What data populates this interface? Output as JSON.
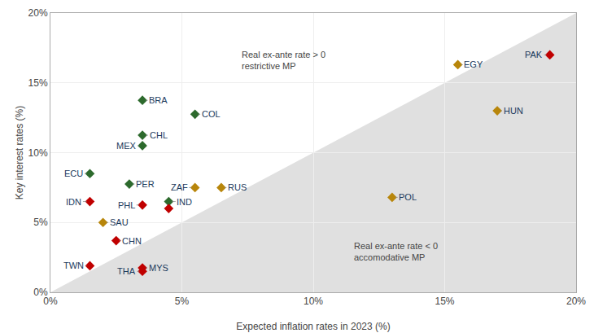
{
  "chart_data": {
    "type": "scatter",
    "marker": "diamond",
    "x": [
      19.0,
      15.5,
      17.0,
      13.0,
      3.5,
      5.5,
      3.5,
      3.5,
      1.5,
      3.0,
      4.5,
      5.5,
      6.5,
      1.5,
      3.5,
      4.5,
      2.0,
      2.5,
      1.5,
      3.5,
      3.5
    ],
    "values": [
      17.0,
      16.3,
      13.0,
      6.8,
      13.75,
      12.75,
      11.25,
      10.5,
      8.5,
      7.75,
      6.5,
      7.5,
      7.5,
      6.5,
      6.25,
      6.0,
      5.0,
      3.7,
      1.9,
      1.75,
      1.5
    ],
    "labels": [
      "PAK",
      "EGY",
      "HUN",
      "POL",
      "BRA",
      "COL",
      "CHL",
      "MEX",
      "ECU",
      "PER",
      "IND",
      "ZAF",
      "RUS",
      "IDN",
      "PHL",
      null,
      "SAU",
      "CHN",
      "TWN",
      "MYS",
      "THA"
    ],
    "colors": [
      "#c00000",
      "#b8860b",
      "#b8860b",
      "#b8860b",
      "#2d6a2d",
      "#2d6a2d",
      "#2d6a2d",
      "#2d6a2d",
      "#2d6a2d",
      "#2d6a2d",
      "#2d6a2d",
      "#b8860b",
      "#b8860b",
      "#c00000",
      "#c00000",
      "#c00000",
      "#b8860b",
      "#c00000",
      "#c00000",
      "#c00000",
      "#c00000"
    ],
    "xlabel": "Expected inflation rates in 2023 (%)",
    "ylabel": "Key interest rates (%)",
    "annotations": [
      "Real ex-ante rate > 0\nrestrictive MP",
      "Real ex-ante rate < 0\naccomodative MP"
    ],
    "xlim": [
      0,
      20
    ],
    "ylim": [
      0,
      20
    ],
    "xticks": [
      {
        "value": 0,
        "label": "0%"
      },
      {
        "value": 5,
        "label": "5%"
      },
      {
        "value": 10,
        "label": "10%"
      },
      {
        "value": 15,
        "label": "15%"
      },
      {
        "value": 20,
        "label": "20%"
      }
    ],
    "yticks": [
      {
        "value": 0,
        "label": "0%"
      },
      {
        "value": 5,
        "label": "5%"
      },
      {
        "value": 10,
        "label": "10%"
      },
      {
        "value": 15,
        "label": "15%"
      },
      {
        "value": 20,
        "label": "20%"
      }
    ],
    "grid": true
  }
}
